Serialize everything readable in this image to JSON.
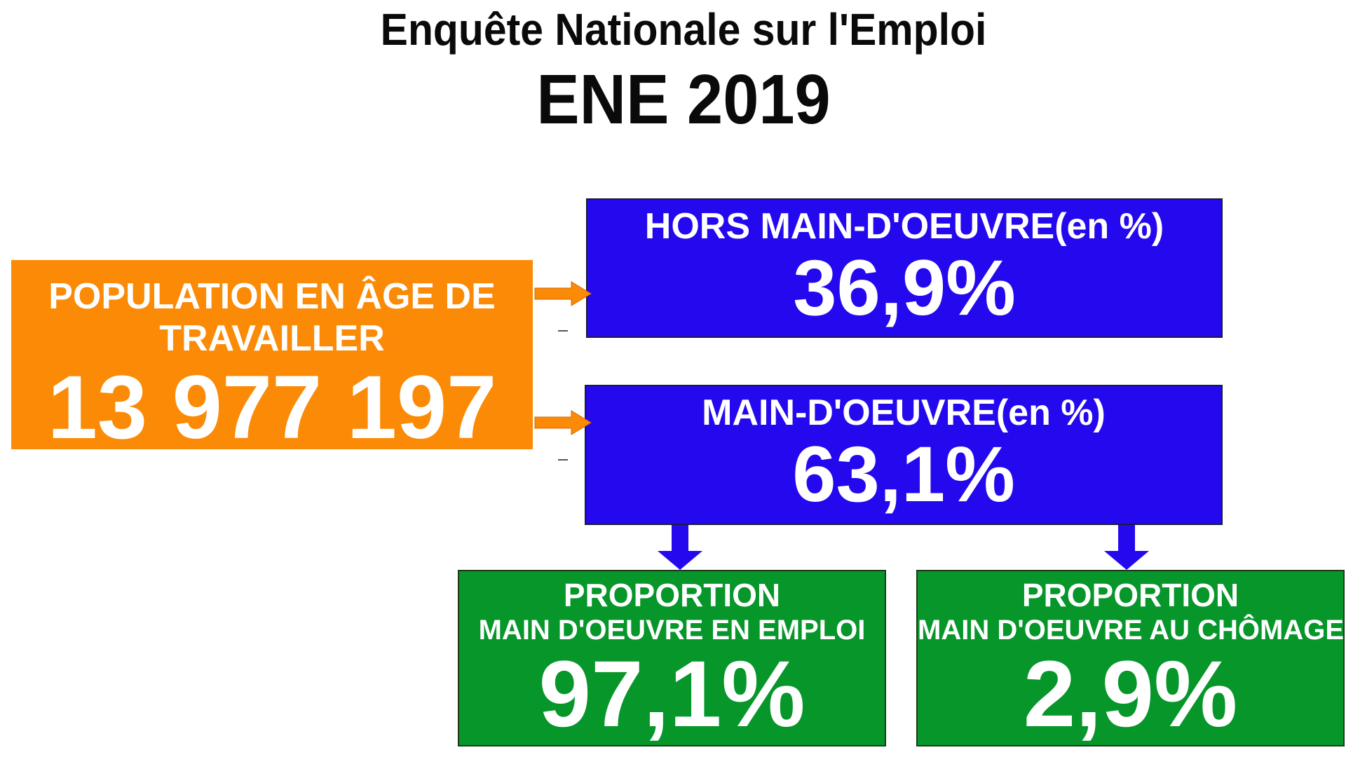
{
  "header": {
    "title": "Enquête Nationale sur l'Emploi",
    "subtitle": "ENE 2019"
  },
  "population": {
    "label": "POPULATION EN ÂGE DE TRAVAILLER",
    "value": "13 977 197"
  },
  "hors_main_oeuvre": {
    "label": "HORS MAIN-D'OEUVRE(en %)",
    "value": "36,9%"
  },
  "main_oeuvre": {
    "label": "MAIN-D'OEUVRE(en %)",
    "value": "63,1%"
  },
  "emploi": {
    "label_line1": "PROPORTION",
    "label_line2": "MAIN D'OEUVRE EN EMPLOI",
    "value": "97,1%"
  },
  "chomage": {
    "label_line1": "PROPORTION",
    "label_line2": "MAIN D'OEUVRE AU CHÔMAGE",
    "value": "2,9%"
  },
  "colors": {
    "orange": "#FB8A07",
    "blue": "#2409EE",
    "green": "#06962A"
  }
}
